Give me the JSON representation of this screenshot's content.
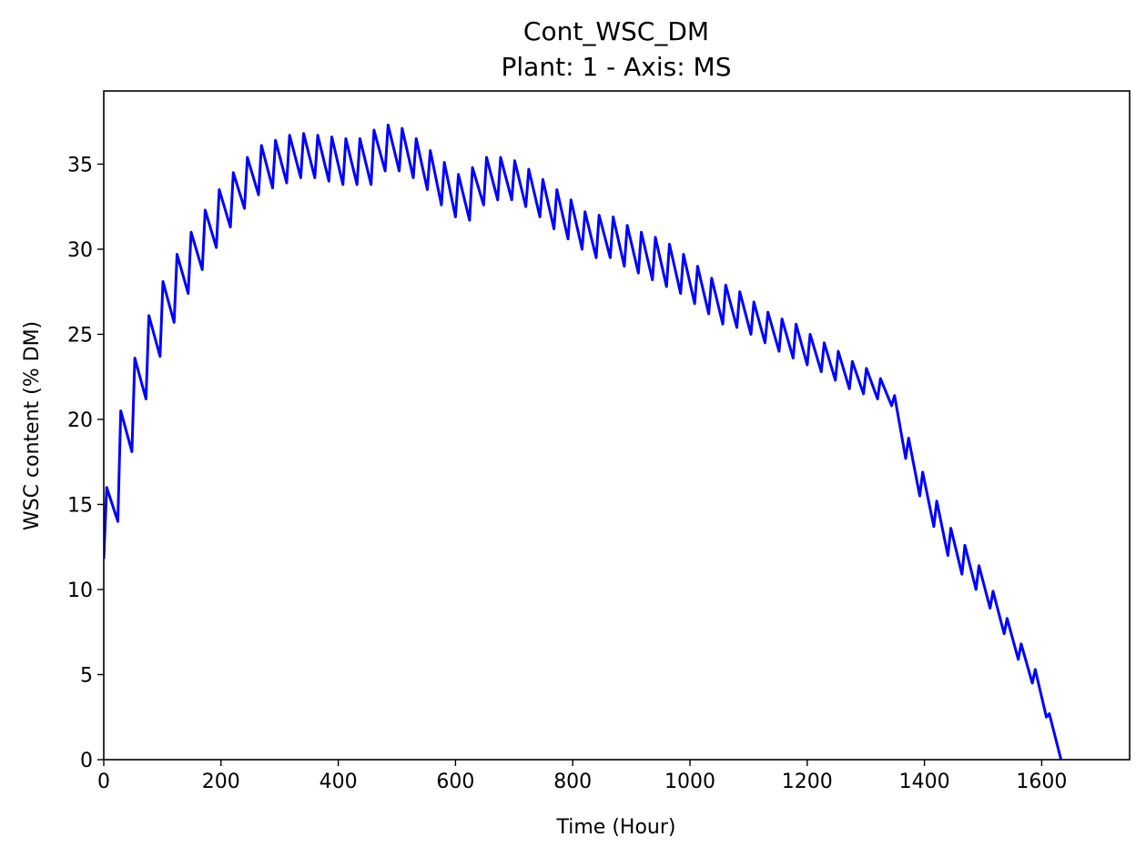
{
  "chart_data": {
    "type": "line",
    "title": "Cont_WSC_DM",
    "subtitle": "Plant: 1 - Axis: MS",
    "xlabel": "Time (Hour)",
    "ylabel": "WSC content (% DM)",
    "xlim": [
      0,
      1750
    ],
    "ylim": [
      0,
      39.3
    ],
    "xticks": [
      0,
      200,
      400,
      600,
      800,
      1000,
      1200,
      1400,
      1600
    ],
    "yticks": [
      0,
      5,
      10,
      15,
      20,
      25,
      30,
      35
    ],
    "grid": false,
    "legend": "none",
    "series": [
      {
        "color": "#0000ff",
        "x": [
          0,
          5,
          24,
          29,
          48,
          53,
          72,
          77,
          96,
          101,
          120,
          125,
          144,
          149,
          168,
          173,
          192,
          197,
          216,
          221,
          240,
          245,
          264,
          269,
          288,
          293,
          312,
          317,
          336,
          341,
          360,
          365,
          384,
          389,
          408,
          413,
          432,
          437,
          456,
          461,
          480,
          485,
          504,
          509,
          528,
          533,
          552,
          557,
          576,
          581,
          600,
          605,
          624,
          629,
          648,
          653,
          672,
          677,
          696,
          701,
          720,
          725,
          744,
          749,
          768,
          773,
          792,
          797,
          816,
          821,
          840,
          845,
          864,
          869,
          888,
          893,
          912,
          917,
          936,
          941,
          960,
          965,
          984,
          989,
          1008,
          1013,
          1032,
          1037,
          1056,
          1061,
          1080,
          1085,
          1104,
          1109,
          1128,
          1133,
          1152,
          1157,
          1176,
          1181,
          1200,
          1205,
          1224,
          1229,
          1248,
          1253,
          1272,
          1277,
          1296,
          1301,
          1320,
          1325,
          1344,
          1349,
          1368,
          1373,
          1392,
          1397,
          1416,
          1421,
          1440,
          1445,
          1464,
          1469,
          1488,
          1493,
          1512,
          1517,
          1536,
          1541,
          1560,
          1565,
          1584,
          1589,
          1608,
          1613,
          1633
        ],
        "y": [
          11.8,
          16.0,
          14.0,
          20.5,
          18.1,
          23.6,
          21.2,
          26.1,
          23.7,
          28.1,
          25.7,
          29.7,
          27.4,
          31.0,
          28.8,
          32.3,
          30.1,
          33.5,
          31.3,
          34.5,
          32.4,
          35.4,
          33.2,
          36.1,
          33.6,
          36.4,
          33.9,
          36.7,
          34.2,
          36.8,
          34.2,
          36.7,
          34.0,
          36.6,
          33.8,
          36.5,
          33.8,
          36.5,
          33.8,
          37.0,
          34.6,
          37.3,
          34.6,
          37.1,
          34.2,
          36.5,
          33.5,
          35.8,
          32.6,
          35.1,
          31.9,
          34.4,
          31.7,
          34.8,
          32.6,
          35.4,
          32.9,
          35.4,
          32.9,
          35.2,
          32.5,
          34.7,
          31.9,
          34.1,
          31.2,
          33.5,
          30.6,
          32.9,
          30.0,
          32.2,
          29.5,
          32.0,
          29.5,
          31.9,
          29.0,
          31.4,
          28.6,
          31.0,
          28.2,
          30.7,
          27.8,
          30.3,
          27.4,
          29.7,
          26.8,
          29.0,
          26.2,
          28.3,
          25.6,
          27.9,
          25.4,
          27.5,
          25.0,
          26.9,
          24.5,
          26.3,
          24.0,
          25.9,
          23.6,
          25.6,
          23.2,
          25.0,
          22.8,
          24.5,
          22.3,
          24.0,
          21.8,
          23.4,
          21.5,
          23.0,
          21.2,
          22.4,
          20.8,
          21.4,
          17.7,
          18.9,
          15.5,
          16.9,
          13.7,
          15.2,
          12.0,
          13.6,
          10.9,
          12.6,
          10.0,
          11.4,
          8.9,
          9.9,
          7.4,
          8.3,
          5.9,
          6.8,
          4.5,
          5.3,
          2.5,
          2.7,
          0.0
        ]
      }
    ]
  }
}
